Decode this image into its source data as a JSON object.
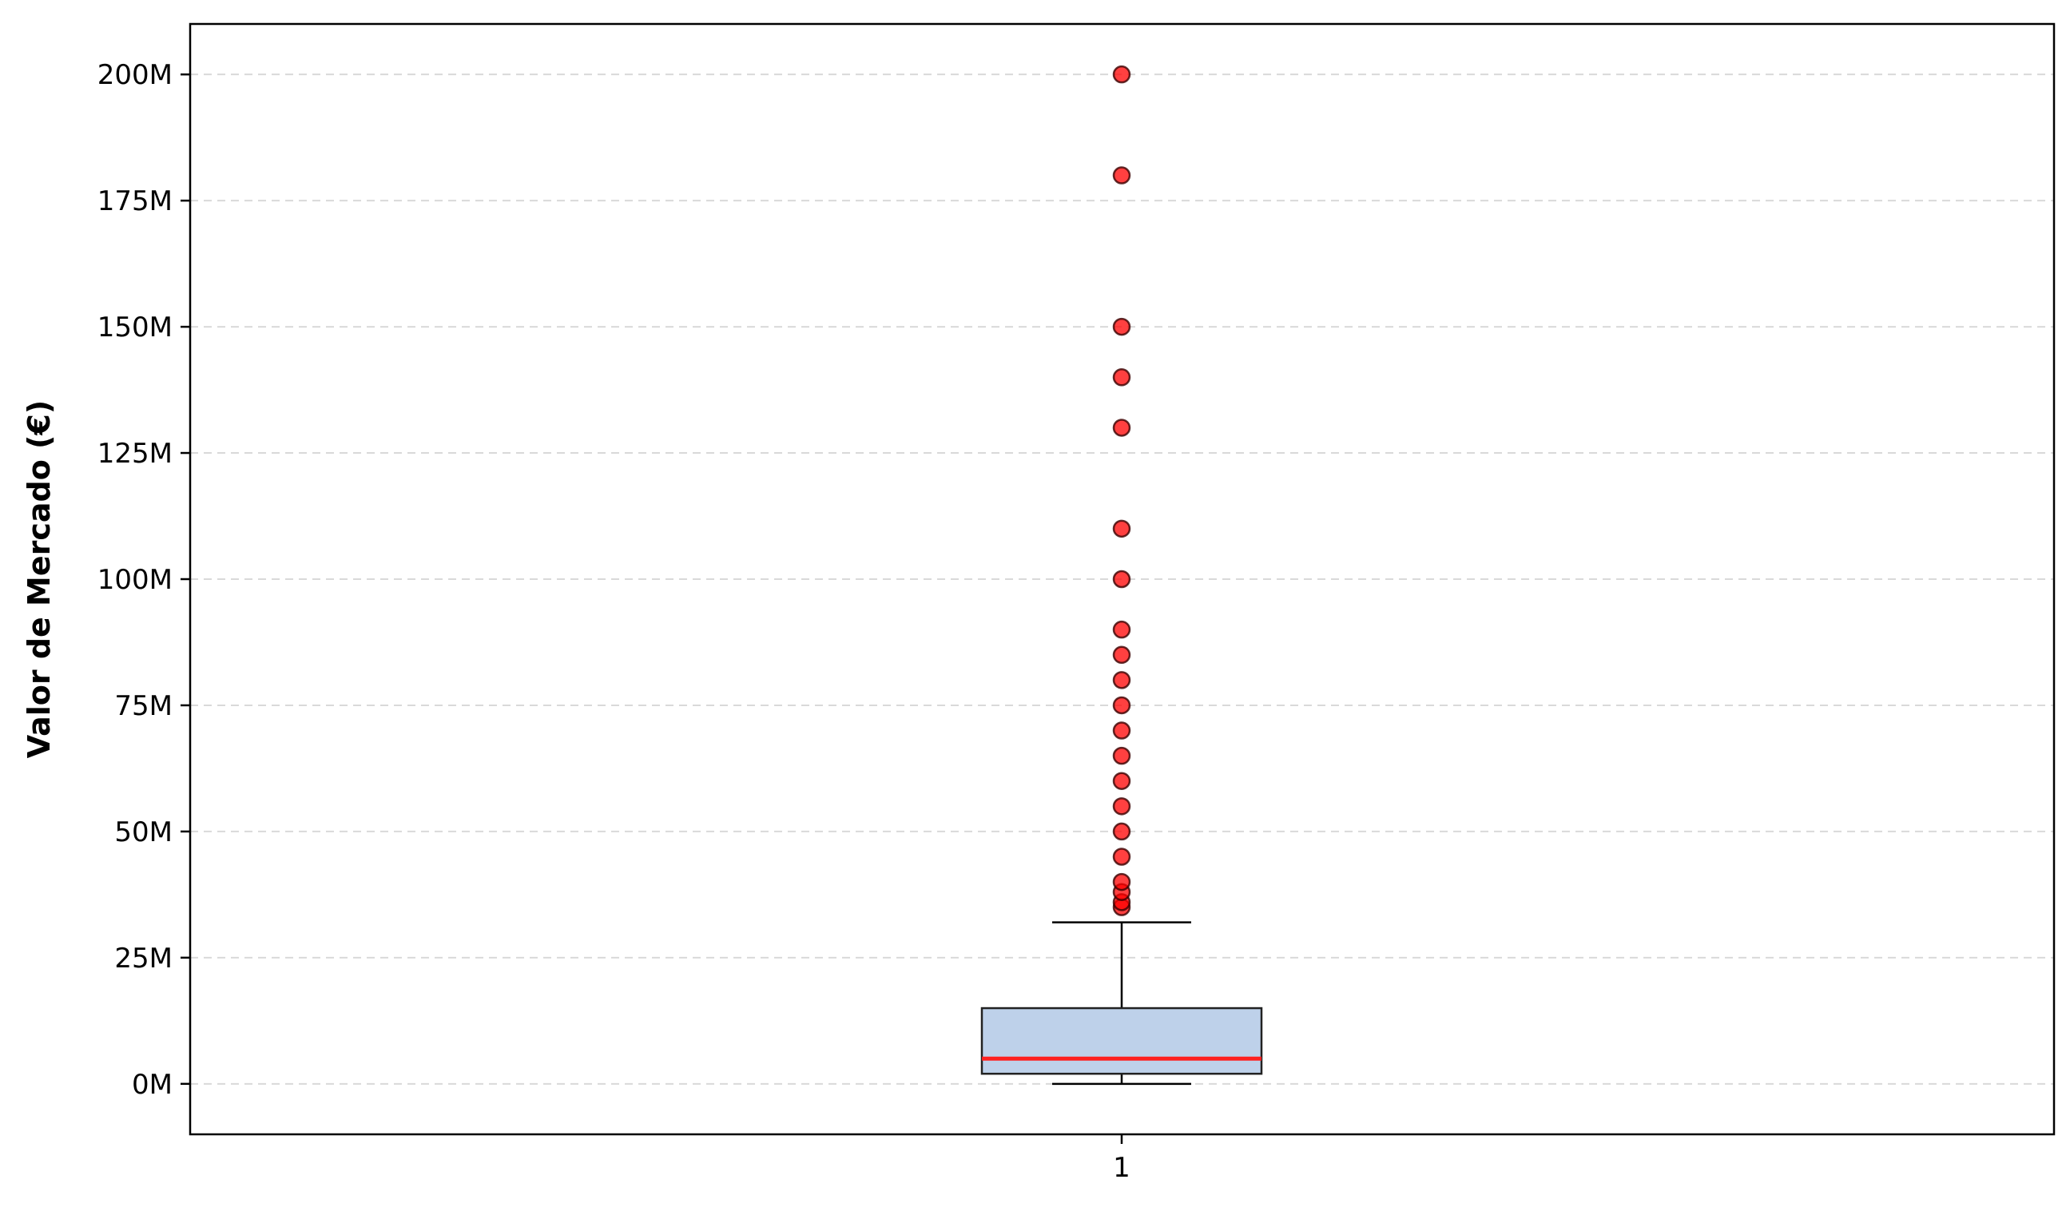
{
  "chart_data": {
    "type": "box",
    "categories": [
      "1"
    ],
    "ylabel": "Valor de Mercado (€)",
    "xlabel": "",
    "title": "",
    "ylim": [
      -10000000,
      210000000
    ],
    "yticks": [
      0,
      25000000,
      50000000,
      75000000,
      100000000,
      125000000,
      150000000,
      175000000,
      200000000
    ],
    "ytick_labels": [
      "0M",
      "25M",
      "50M",
      "75M",
      "100M",
      "125M",
      "150M",
      "175M",
      "200M"
    ],
    "grid": "y-dashed",
    "box": {
      "whisker_low": 0,
      "q1": 2000000,
      "median": 5000000,
      "q3": 15000000,
      "whisker_high": 32000000
    },
    "outliers": [
      35000000,
      36000000,
      38000000,
      40000000,
      45000000,
      50000000,
      55000000,
      60000000,
      65000000,
      70000000,
      75000000,
      80000000,
      85000000,
      90000000,
      100000000,
      110000000,
      130000000,
      140000000,
      150000000,
      180000000,
      200000000
    ],
    "colors": {
      "box_fill": "#bed1ea",
      "box_edge": "#222222",
      "median": "#ff2020",
      "outlier_fill": "#ff0000",
      "outlier_edge": "#3a0000",
      "grid": "#d9d9d9"
    }
  }
}
